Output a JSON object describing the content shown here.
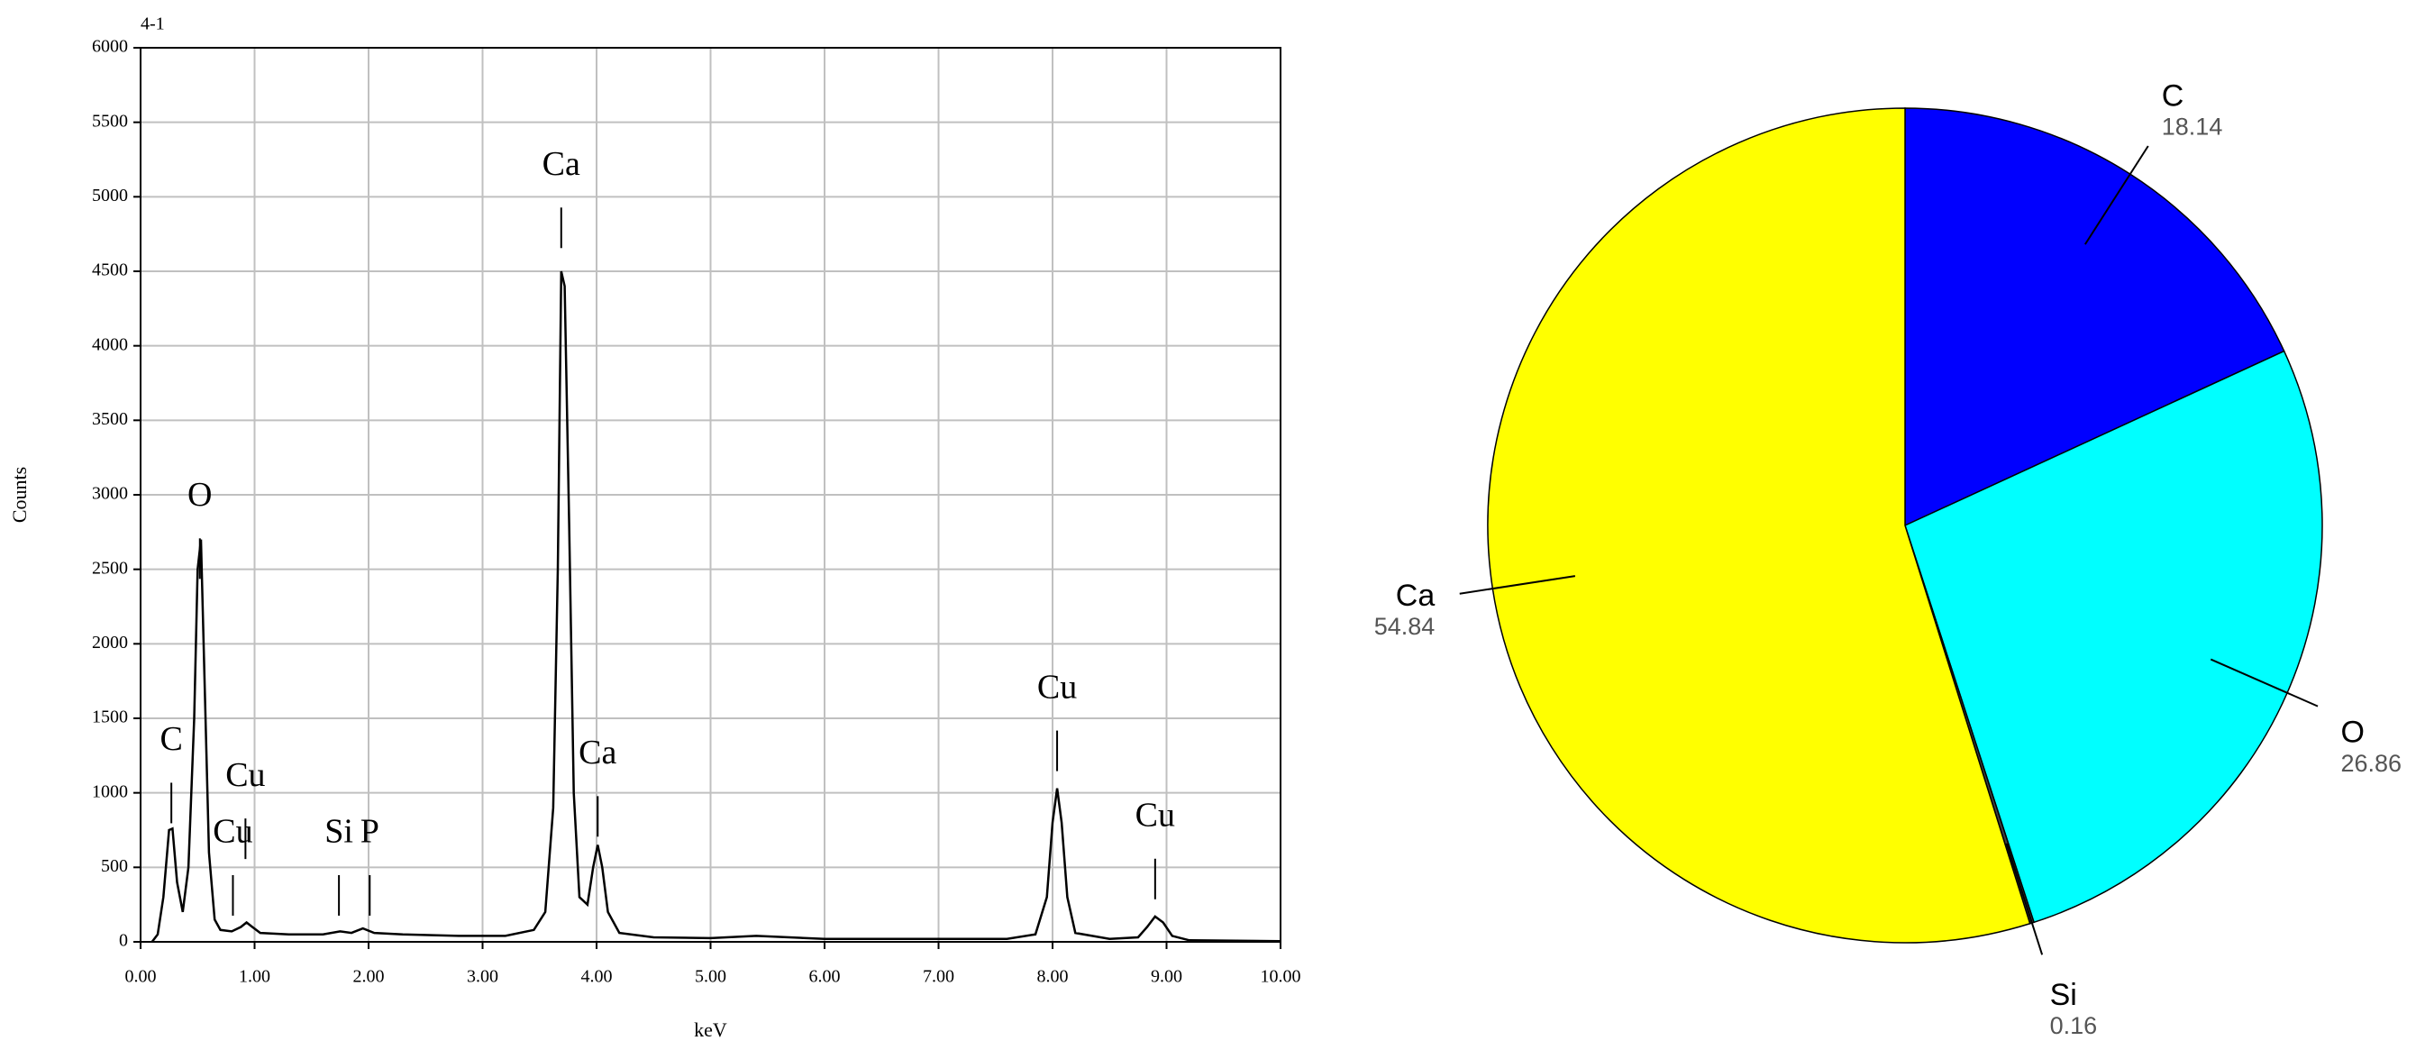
{
  "chart_data": [
    {
      "type": "line",
      "title": "4-1",
      "x_label": "keV",
      "y_label": "Counts",
      "x": [
        0.1,
        0.15,
        0.2,
        0.25,
        0.28,
        0.32,
        0.37,
        0.42,
        0.47,
        0.5,
        0.53,
        0.56,
        0.6,
        0.65,
        0.7,
        0.8,
        0.88,
        0.93,
        0.98,
        1.05,
        1.3,
        1.6,
        1.75,
        1.85,
        1.95,
        2.05,
        2.3,
        2.8,
        3.2,
        3.45,
        3.55,
        3.62,
        3.66,
        3.69,
        3.72,
        3.76,
        3.8,
        3.85,
        3.92,
        3.97,
        4.01,
        4.05,
        4.1,
        4.2,
        4.5,
        5.0,
        5.4,
        6.0,
        7.0,
        7.6,
        7.85,
        7.95,
        8.0,
        8.04,
        8.08,
        8.13,
        8.2,
        8.5,
        8.75,
        8.83,
        8.9,
        8.97,
        9.05,
        9.2,
        10.0
      ],
      "series": [
        {
          "color": "#000000",
          "values": [
            0,
            50,
            300,
            750,
            760,
            400,
            200,
            500,
            1500,
            2500,
            2700,
            1800,
            600,
            150,
            80,
            70,
            100,
            130,
            100,
            60,
            50,
            50,
            70,
            60,
            90,
            60,
            50,
            40,
            40,
            80,
            200,
            900,
            2500,
            4500,
            4400,
            2800,
            1000,
            300,
            250,
            500,
            650,
            500,
            200,
            60,
            30,
            25,
            40,
            20,
            20,
            20,
            50,
            300,
            800,
            1030,
            800,
            300,
            60,
            20,
            30,
            100,
            170,
            130,
            40,
            10,
            5
          ]
        }
      ],
      "xlim": [
        0,
        10
      ],
      "ylim": [
        0,
        6000
      ],
      "xticks": [
        {
          "value": 0,
          "label": "0.00"
        },
        {
          "value": 1,
          "label": "1.00"
        },
        {
          "value": 2,
          "label": "2.00"
        },
        {
          "value": 3,
          "label": "3.00"
        },
        {
          "value": 4,
          "label": "4.00"
        },
        {
          "value": 5,
          "label": "5.00"
        },
        {
          "value": 6,
          "label": "6.00"
        },
        {
          "value": 7,
          "label": "7.00"
        },
        {
          "value": 8,
          "label": "8.00"
        },
        {
          "value": 9,
          "label": "9.00"
        },
        {
          "value": 10,
          "label": "10.00"
        }
      ],
      "yticks": [
        0,
        500,
        1000,
        1500,
        2000,
        2500,
        3000,
        3500,
        4000,
        4500,
        5000,
        5500,
        6000
      ],
      "grid": true,
      "annotations": [
        {
          "text": "C",
          "x": 0.27,
          "y": 1340
        },
        {
          "text": "O",
          "x": 0.52,
          "y": 2980
        },
        {
          "text": "Cu",
          "x": 0.92,
          "y": 1100
        },
        {
          "text": "Cu",
          "x": 0.81,
          "y": 720
        },
        {
          "text": "Si",
          "x": 1.74,
          "y": 720
        },
        {
          "text": "P",
          "x": 2.01,
          "y": 720
        },
        {
          "text": "Ca",
          "x": 3.69,
          "y": 5200
        },
        {
          "text": "Ca",
          "x": 4.01,
          "y": 1250
        },
        {
          "text": "Cu",
          "x": 8.04,
          "y": 1690
        },
        {
          "text": "Cu",
          "x": 8.9,
          "y": 830
        }
      ]
    },
    {
      "type": "pie",
      "categories": [
        "C",
        "O",
        "Si",
        "Ca"
      ],
      "values": [
        18.14,
        26.86,
        0.16,
        54.84
      ],
      "colors": [
        "#0000ff",
        "#00ffff",
        "#404040",
        "#ffff00"
      ]
    }
  ]
}
